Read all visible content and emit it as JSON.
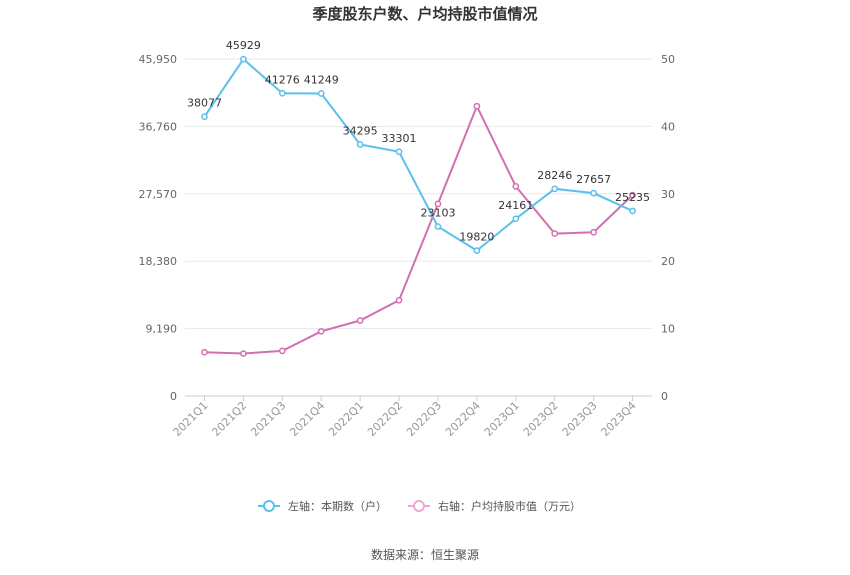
{
  "chart_data": {
    "type": "line",
    "title": "季度股东户数、户均持股市值情况",
    "categories": [
      "2021Q1",
      "2021Q2",
      "2021Q3",
      "2021Q4",
      "2022Q1",
      "2022Q2",
      "2022Q3",
      "2022Q4",
      "2023Q1",
      "2023Q2",
      "2023Q3",
      "2023Q4"
    ],
    "series": [
      {
        "name": "左轴：本期数（户）",
        "axis": "left",
        "color": "#5bc0eb",
        "values": [
          38077,
          45929,
          41276,
          41249,
          34295,
          33301,
          23103,
          19820,
          24161,
          28246,
          27657,
          25235
        ],
        "labels": [
          "38077",
          "45929",
          "41276",
          "41249",
          "34295",
          "33301",
          "23103",
          "19820",
          "24161",
          "28246",
          "27657",
          "25235"
        ]
      },
      {
        "name": "右轴：户均持股市值（万元）",
        "axis": "right",
        "color": "#d170b0",
        "values": [
          6.5,
          6.3,
          6.7,
          9.6,
          11.2,
          14.2,
          28.5,
          43.0,
          31.1,
          24.1,
          24.3,
          29.8
        ]
      }
    ],
    "left_axis": {
      "ylim": [
        0,
        45950
      ],
      "ticks": [
        "0",
        "9,190",
        "18,380",
        "27,570",
        "36,760",
        "45,950"
      ],
      "tick_values": [
        0,
        9190,
        18380,
        27570,
        36760,
        45950
      ]
    },
    "right_axis": {
      "ylim": [
        0,
        50
      ],
      "ticks": [
        "0",
        "10",
        "20",
        "30",
        "40",
        "50"
      ],
      "tick_values": [
        0,
        10,
        20,
        30,
        40,
        50
      ]
    },
    "grid": true,
    "legend": "bottom"
  },
  "source_text": "数据来源：恒生聚源"
}
